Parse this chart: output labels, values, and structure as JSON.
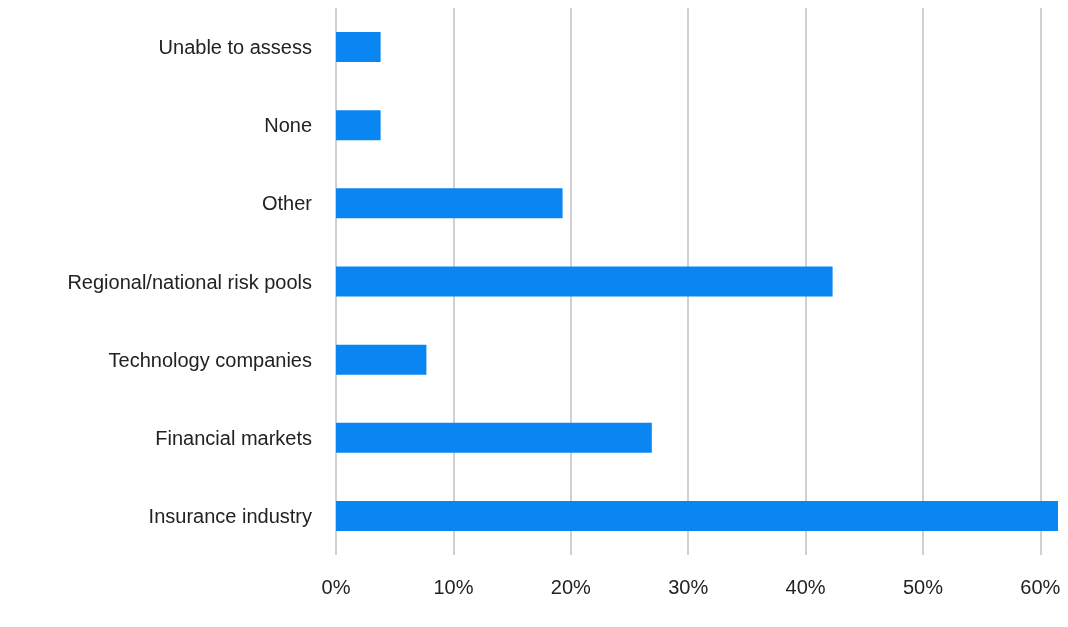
{
  "chart_data": {
    "type": "bar",
    "orientation": "horizontal",
    "categories": [
      "Unable to assess",
      "None",
      "Other",
      "Regional/national risk pools",
      "Technology companies",
      "Financial markets",
      "Insurance industry"
    ],
    "values": [
      3.8,
      3.8,
      19.3,
      42.3,
      7.7,
      26.9,
      61.5
    ],
    "color": "#0a86f2",
    "xlim": [
      0,
      61.5
    ],
    "xticks": [
      {
        "value": 0,
        "label": "0%"
      },
      {
        "value": 10,
        "label": "10%"
      },
      {
        "value": 20,
        "label": "20%"
      },
      {
        "value": 30,
        "label": "30%"
      },
      {
        "value": 40,
        "label": "40%"
      },
      {
        "value": 50,
        "label": "50%"
      },
      {
        "value": 60,
        "label": "60%"
      }
    ],
    "grid": "x"
  }
}
